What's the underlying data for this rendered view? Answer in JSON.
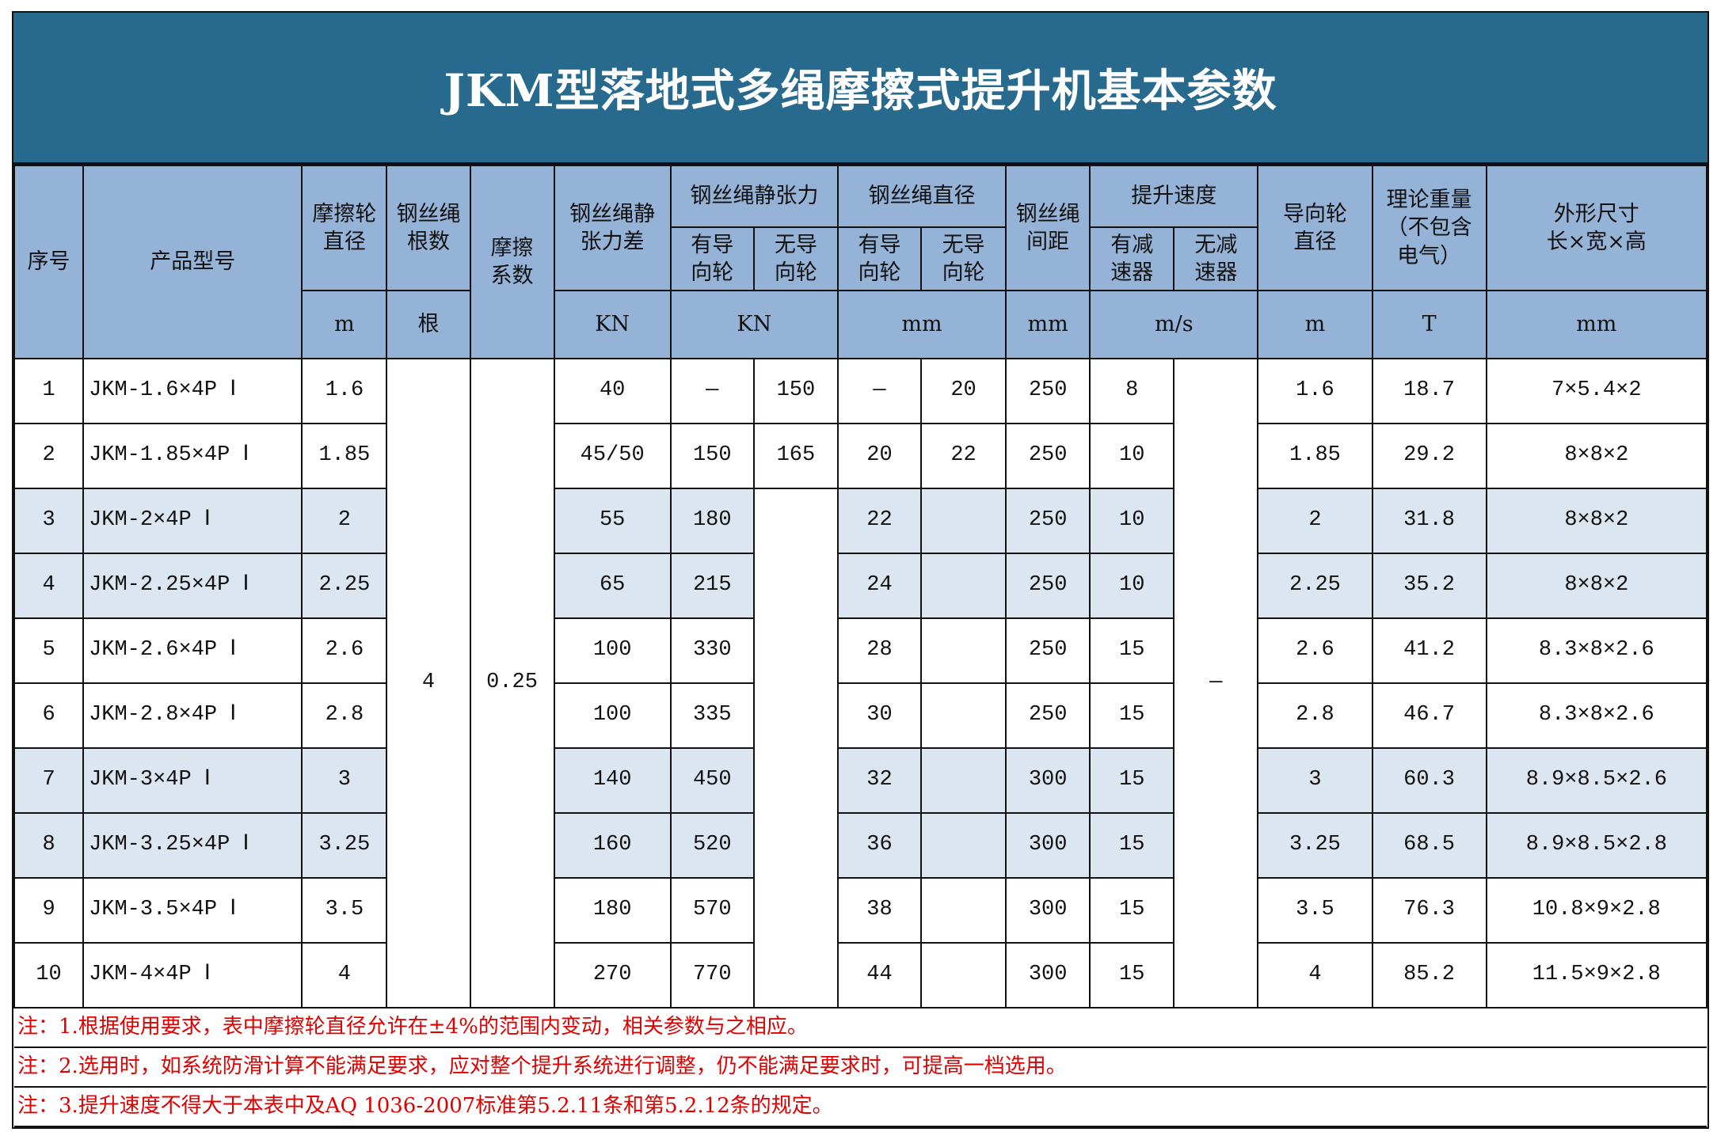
{
  "title": "JKM型落地式多绳摩擦式提升机基本参数",
  "colors": {
    "title_bg": "#286a8e",
    "header_bg": "#95b3d7",
    "row_shade": "#dce6f1",
    "note_text": "#e00000"
  },
  "header": {
    "seq": "序号",
    "model": "产品型号",
    "friction_dia": "摩擦轮\n直径",
    "rope_count": "钢丝绳\n根数",
    "friction_coef": "摩擦\n系数",
    "tension_diff": "钢丝绳静\n张力差",
    "tension": "钢丝绳静张力",
    "rope_dia": "钢丝绳直径",
    "rope_spacing": "钢丝绳\n间距",
    "speed": "提升速度",
    "guide_dia": "导向轮\n直径",
    "weight": "理论重量\n（不包含\n电气）",
    "dims": "外形尺寸\n长×宽×高",
    "with_guide": "有导\n向轮",
    "without_guide": "无导\n向轮",
    "with_reducer": "有减\n速器",
    "without_reducer": "无减\n速器",
    "units": {
      "friction_dia": "m",
      "rope_count": "根",
      "tension_diff": "KN",
      "tension": "KN",
      "rope_dia": "mm",
      "rope_spacing": "mm",
      "speed": "m/s",
      "guide_dia": "m",
      "weight": "T",
      "dims": "mm"
    }
  },
  "merged": {
    "rope_count": "4",
    "friction_coef": "0.25",
    "speed_no_reducer": "—"
  },
  "rows": [
    {
      "seq": "1",
      "model": "JKM-1.6×4P Ⅰ",
      "friction_dia": "1.6",
      "tension_diff": "40",
      "tension_guide": "—",
      "tension_noguide": "150",
      "dia_guide": "—",
      "dia_noguide": "20",
      "spacing": "250",
      "speed": "8",
      "guide_dia": "1.6",
      "weight": "18.7",
      "dims": "7×5.4×2"
    },
    {
      "seq": "2",
      "model": "JKM-1.85×4P Ⅰ",
      "friction_dia": "1.85",
      "tension_diff": "45/50",
      "tension_guide": "150",
      "tension_noguide": "165",
      "dia_guide": "20",
      "dia_noguide": "22",
      "spacing": "250",
      "speed": "10",
      "guide_dia": "1.85",
      "weight": "29.2",
      "dims": "8×8×2"
    },
    {
      "seq": "3",
      "model": "JKM-2×4P Ⅰ",
      "friction_dia": "2",
      "tension_diff": "55",
      "tension_guide": "180",
      "dia_guide": "22",
      "dia_noguide": "",
      "spacing": "250",
      "speed": "10",
      "guide_dia": "2",
      "weight": "31.8",
      "dims": "8×8×2"
    },
    {
      "seq": "4",
      "model": "JKM-2.25×4P Ⅰ",
      "friction_dia": "2.25",
      "tension_diff": "65",
      "tension_guide": "215",
      "dia_guide": "24",
      "dia_noguide": "",
      "spacing": "250",
      "speed": "10",
      "guide_dia": "2.25",
      "weight": "35.2",
      "dims": "8×8×2"
    },
    {
      "seq": "5",
      "model": "JKM-2.6×4P Ⅰ",
      "friction_dia": "2.6",
      "tension_diff": "100",
      "tension_guide": "330",
      "dia_guide": "28",
      "dia_noguide": "",
      "spacing": "250",
      "speed": "15",
      "guide_dia": "2.6",
      "weight": "41.2",
      "dims": "8.3×8×2.6"
    },
    {
      "seq": "6",
      "model": "JKM-2.8×4P Ⅰ",
      "friction_dia": "2.8",
      "tension_diff": "100",
      "tension_guide": "335",
      "dia_guide": "30",
      "dia_noguide": "",
      "spacing": "250",
      "speed": "15",
      "guide_dia": "2.8",
      "weight": "46.7",
      "dims": "8.3×8×2.6"
    },
    {
      "seq": "7",
      "model": "JKM-3×4P Ⅰ",
      "friction_dia": "3",
      "tension_diff": "140",
      "tension_guide": "450",
      "dia_guide": "32",
      "dia_noguide": "",
      "spacing": "300",
      "speed": "15",
      "guide_dia": "3",
      "weight": "60.3",
      "dims": "8.9×8.5×2.6"
    },
    {
      "seq": "8",
      "model": "JKM-3.25×4P Ⅰ",
      "friction_dia": "3.25",
      "tension_diff": "160",
      "tension_guide": "520",
      "dia_guide": "36",
      "dia_noguide": "",
      "spacing": "300",
      "speed": "15",
      "guide_dia": "3.25",
      "weight": "68.5",
      "dims": "8.9×8.5×2.8"
    },
    {
      "seq": "9",
      "model": "JKM-3.5×4P Ⅰ",
      "friction_dia": "3.5",
      "tension_diff": "180",
      "tension_guide": "570",
      "dia_guide": "38",
      "dia_noguide": "",
      "spacing": "300",
      "speed": "15",
      "guide_dia": "3.5",
      "weight": "76.3",
      "dims": "10.8×9×2.8"
    },
    {
      "seq": "10",
      "model": "JKM-4×4P Ⅰ",
      "friction_dia": "4",
      "tension_diff": "270",
      "tension_guide": "770",
      "dia_guide": "44",
      "dia_noguide": "",
      "spacing": "300",
      "speed": "15",
      "guide_dia": "4",
      "weight": "85.2",
      "dims": "11.5×9×2.8"
    }
  ],
  "notes": [
    "注：1.根据使用要求，表中摩擦轮直径允许在±4%的范围内变动，相关参数与之相应。",
    "注：2.选用时，如系统防滑计算不能满足要求，应对整个提升系统进行调整，仍不能满足要求时，可提高一档选用。",
    "注：3.提升速度不得大于本表中及AQ 1036-2007标准第5.2.11条和第5.2.12条的规定。"
  ]
}
